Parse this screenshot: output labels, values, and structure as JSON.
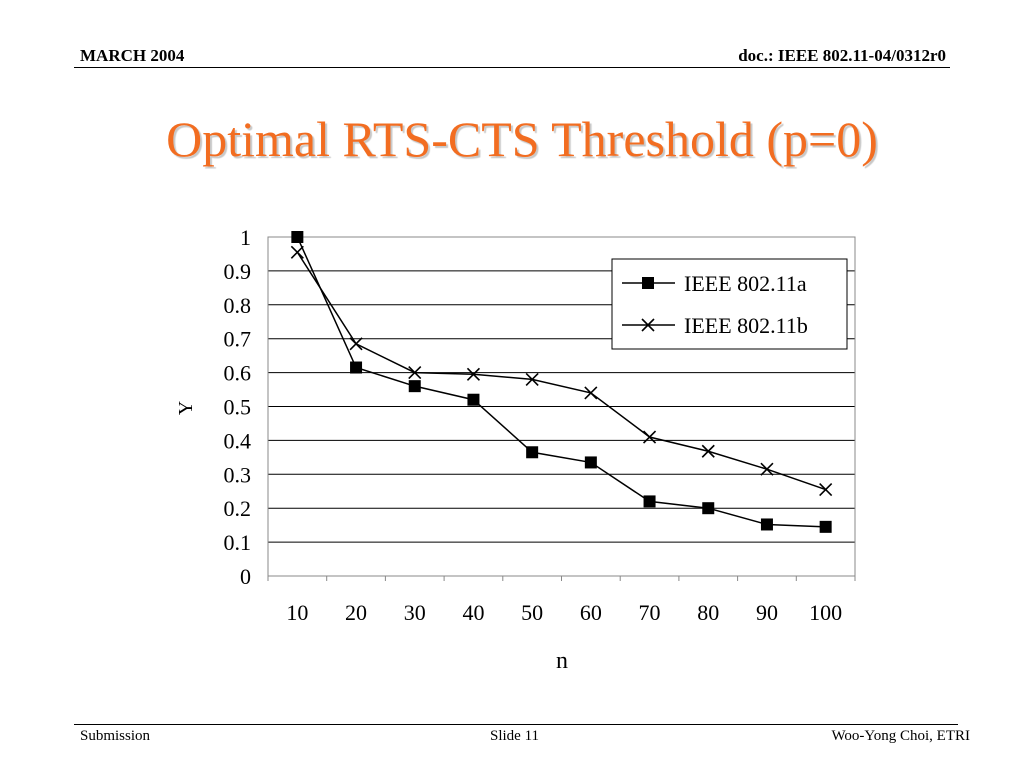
{
  "header": {
    "date": "MARCH 2004",
    "doc": "doc.: IEEE 802.11-04/0312r0"
  },
  "slide": {
    "title": "Optimal RTS-CTS Threshold (p=0)"
  },
  "footer": {
    "left": "Submission",
    "center": "Slide 11",
    "right": "Woo-Yong Choi, ETRI"
  },
  "chart_data": {
    "type": "line",
    "title": "",
    "xlabel": "n",
    "ylabel": "Y",
    "x": [
      10,
      20,
      30,
      40,
      50,
      60,
      70,
      80,
      90,
      100
    ],
    "ylim": [
      0,
      1
    ],
    "yticks": [
      "0",
      "0.1",
      "0.2",
      "0.3",
      "0.4",
      "0.5",
      "0.6",
      "0.7",
      "0.8",
      "0.9",
      "1"
    ],
    "grid": true,
    "legend_position": "top-right",
    "series": [
      {
        "name": "IEEE 802.11a",
        "marker": "square",
        "values": [
          1.0,
          0.615,
          0.56,
          0.52,
          0.365,
          0.335,
          0.22,
          0.2,
          0.152,
          0.145
        ]
      },
      {
        "name": "IEEE 802.11b",
        "marker": "x",
        "values": [
          0.955,
          0.685,
          0.6,
          0.595,
          0.58,
          0.54,
          0.41,
          0.368,
          0.315,
          0.255
        ]
      }
    ]
  }
}
